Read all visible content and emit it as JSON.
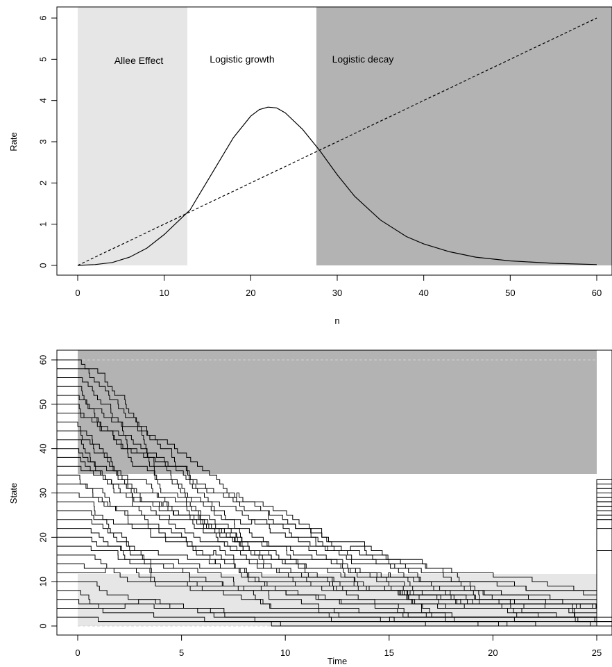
{
  "chart_data": [
    {
      "type": "line",
      "title": "",
      "xlabel": "n",
      "ylabel": "Rate",
      "xlim": [
        0,
        60
      ],
      "ylim": [
        0,
        6
      ],
      "x_ticks": [
        "0",
        "10",
        "20",
        "30",
        "40",
        "50",
        "60"
      ],
      "y_ticks": [
        "0",
        "1",
        "2",
        "3",
        "4",
        "5",
        "6"
      ],
      "regions": [
        {
          "label": "Allee Effect",
          "from": 0,
          "to": 12.6,
          "color": "#e6e6e6"
        },
        {
          "label": "Logistic growth",
          "from": 12.6,
          "to": 27.6,
          "color": "#ffffff"
        },
        {
          "label": "Logistic decay",
          "from": 27.6,
          "to": 62,
          "color": "#b3b3b3"
        }
      ],
      "series": [
        {
          "style": "solid",
          "x": [
            0,
            2,
            4,
            6,
            8,
            10,
            12,
            13,
            14,
            16,
            18,
            20,
            21,
            22,
            23,
            24,
            26,
            28,
            30,
            32,
            35,
            38,
            40,
            43,
            46,
            50,
            55,
            60
          ],
          "y": [
            0,
            0.02,
            0.07,
            0.2,
            0.42,
            0.75,
            1.15,
            1.35,
            1.7,
            2.4,
            3.1,
            3.62,
            3.78,
            3.84,
            3.82,
            3.7,
            3.3,
            2.78,
            2.2,
            1.68,
            1.1,
            0.7,
            0.52,
            0.33,
            0.2,
            0.11,
            0.05,
            0.02
          ]
        },
        {
          "style": "dashed",
          "x": [
            0,
            60
          ],
          "y": [
            0,
            6
          ]
        }
      ]
    },
    {
      "type": "line",
      "title": "",
      "xlabel": "Time",
      "ylabel": "State",
      "xlim": [
        0,
        25
      ],
      "ylim": [
        0,
        60
      ],
      "x_ticks": [
        "0",
        "5",
        "10",
        "15",
        "20",
        "25"
      ],
      "y_ticks": [
        "0",
        "10",
        "20",
        "30",
        "40",
        "50",
        "60"
      ],
      "regions": [
        {
          "label": "",
          "from": 27.6,
          "to": 60,
          "color": "#b3b3b3"
        },
        {
          "label": "",
          "from": 0,
          "to": 12.6,
          "color": "#e6e6e6"
        }
      ],
      "initial_states": [
        60,
        58,
        56,
        54,
        52,
        50,
        48,
        46,
        44,
        42,
        40,
        38,
        36,
        34,
        32,
        30,
        28,
        26,
        24,
        22,
        20,
        18,
        16,
        14,
        12,
        10,
        8,
        6,
        4,
        2
      ],
      "final_states": [
        31,
        31,
        30,
        28,
        32,
        29,
        26,
        30,
        27,
        33,
        28,
        24,
        29,
        31,
        27,
        25,
        30,
        28,
        26,
        24,
        27,
        22,
        25,
        17,
        2,
        1,
        1,
        0,
        0,
        0
      ]
    }
  ]
}
